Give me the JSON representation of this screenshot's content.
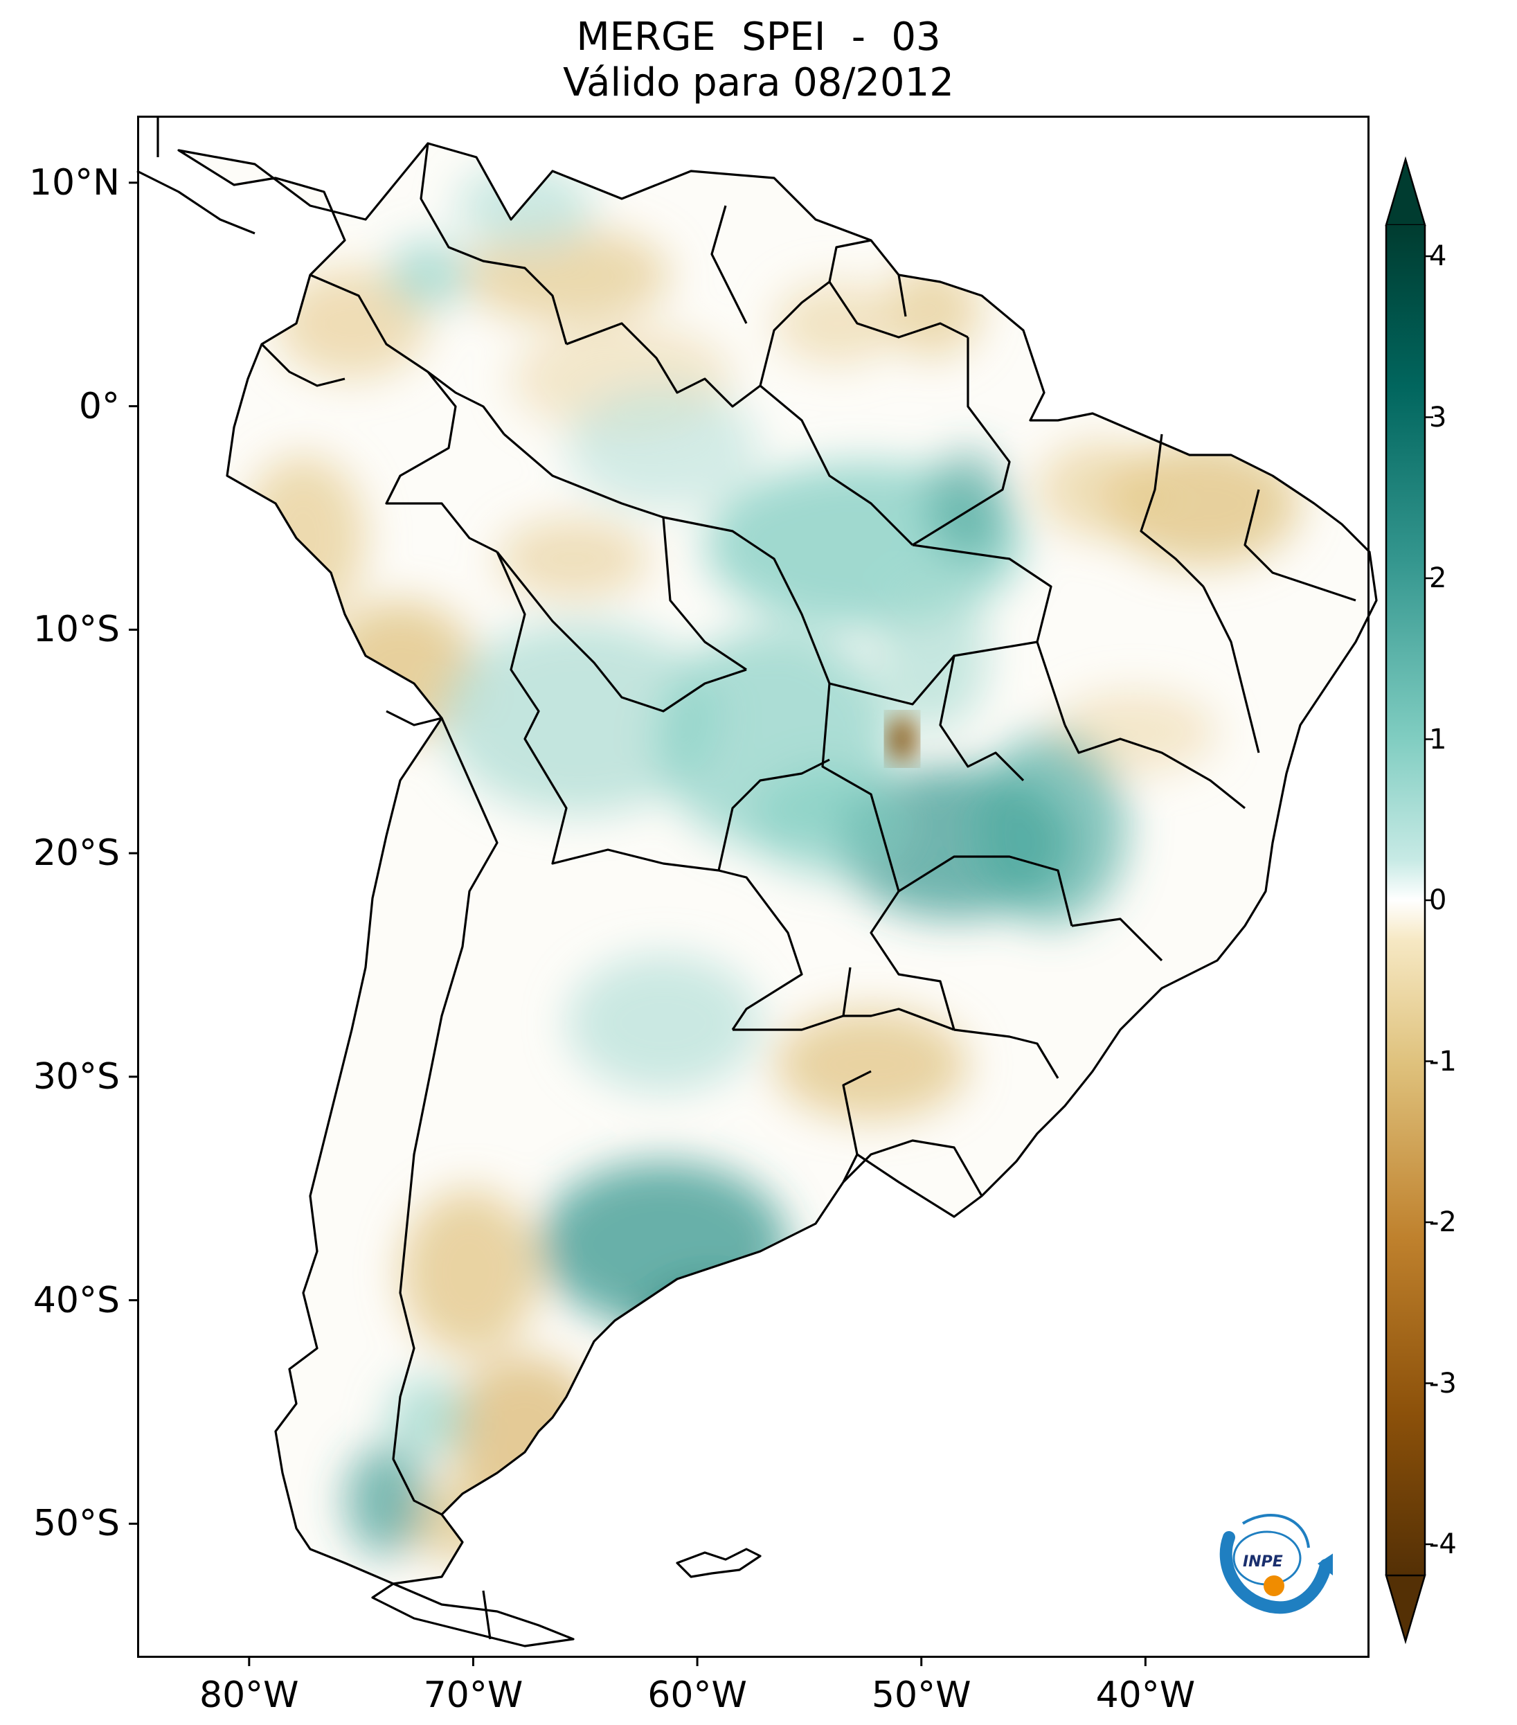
{
  "title": {
    "line1": "MERGE   SPEI - 03",
    "line2": "Válido para 08/2012"
  },
  "map": {
    "region": "South America",
    "lat_range": [
      -56,
      13
    ],
    "lon_range": [
      -85,
      -30
    ],
    "lat_ticks": [
      "10°N",
      "0°",
      "10°S",
      "20°S",
      "30°S",
      "40°S",
      "50°S"
    ],
    "lat_tick_values": [
      10,
      0,
      -10,
      -20,
      -30,
      -40,
      -50
    ],
    "lon_ticks": [
      "80°W",
      "70°W",
      "60°W",
      "50°W",
      "40°W"
    ],
    "lon_tick_values": [
      -80,
      -70,
      -60,
      -50,
      -40
    ]
  },
  "colorbar": {
    "range": [
      -4,
      4
    ],
    "ticks": [
      "4",
      "3",
      "2",
      "1",
      "0",
      "-1",
      "-2",
      "-3",
      "-4"
    ],
    "colors": {
      "dry_extreme": "#543005",
      "dry_strong": "#8c510a",
      "dry_moderate": "#bf812d",
      "dry_mild": "#dfc27d",
      "dry_light": "#f6e8c3",
      "neutral": "#ffffff",
      "wet_light": "#c7eae5",
      "wet_mild": "#80cdc1",
      "wet_moderate": "#35978f",
      "wet_strong": "#01665e",
      "wet_extreme": "#003c30"
    }
  },
  "logo": {
    "text": "INPE"
  }
}
